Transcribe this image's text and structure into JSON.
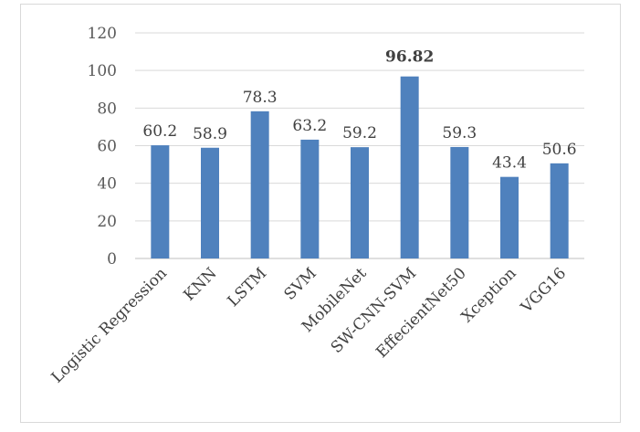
{
  "chart_data": {
    "type": "bar",
    "categories": [
      "Logistic Regression",
      "KNN",
      "LSTM",
      "SVM",
      "MobileNet",
      "SW-CNN-SVM",
      "EffecientNet50",
      "Xception",
      "VGG16"
    ],
    "values": [
      60.2,
      58.9,
      78.3,
      63.2,
      59.2,
      96.82,
      59.3,
      43.4,
      50.6
    ],
    "data_labels": [
      "60.2",
      "58.9",
      "78.3",
      "63.2",
      "59.2",
      "96.82",
      "59.3",
      "43.4",
      "50.6"
    ],
    "highlight_index": 5,
    "yticks": [
      "0",
      "20",
      "40",
      "60",
      "80",
      "100",
      "120"
    ],
    "ylim": [
      0,
      120
    ],
    "grid": true,
    "legend": "none",
    "bar_color": "#4f81bd",
    "title": "",
    "xlabel": "",
    "ylabel": ""
  }
}
